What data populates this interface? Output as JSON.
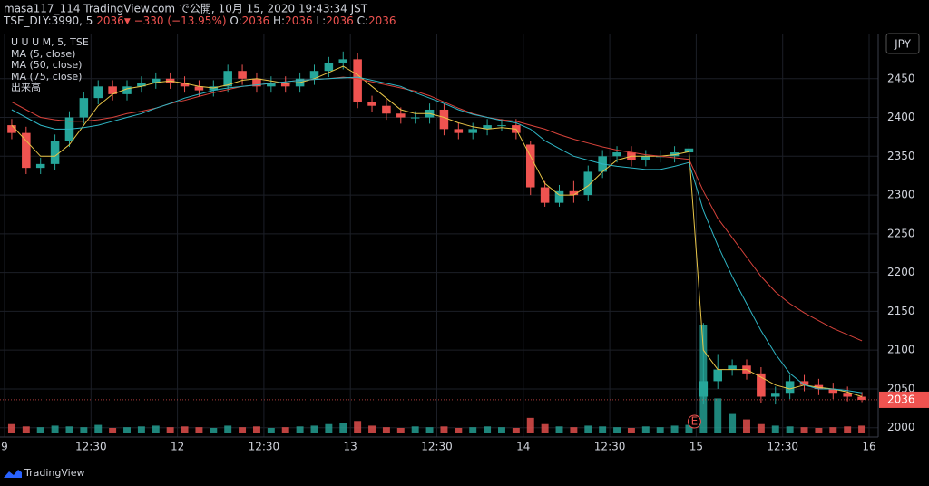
{
  "header": {
    "line1": "masa117_114 TradingView.com で公開, 10月 15, 2020 19:43:34 JST",
    "symbol": "TSE_DLY:3990, 5",
    "last": 2036,
    "direction": "▼",
    "change": "−330 (−13.95%)",
    "ohlc_labels": [
      "O:",
      "H:",
      "L:",
      "C:"
    ],
    "ohlc_values": [
      2036,
      2036,
      2036,
      2036
    ]
  },
  "legend": [
    "U U U M, 5, TSE",
    "MA (5, close)",
    "MA (50, close)",
    "MA (75, close)",
    "出来高"
  ],
  "currency_button": "JPY",
  "earnings_marker": "E",
  "footer": "TradingView",
  "chart_data": {
    "type": "candlestick",
    "up_color": "#26a69a",
    "down_color": "#ef5350",
    "grid": true,
    "xlim": [
      0,
      300
    ],
    "xticks": [
      {
        "value": 0,
        "label": "9"
      },
      {
        "value": 30,
        "label": "12:30"
      },
      {
        "value": 60,
        "label": "12"
      },
      {
        "value": 90,
        "label": "12:30"
      },
      {
        "value": 120,
        "label": "13"
      },
      {
        "value": 150,
        "label": "12:30"
      },
      {
        "value": 180,
        "label": "14"
      },
      {
        "value": 210,
        "label": "12:30"
      },
      {
        "value": 240,
        "label": "15"
      },
      {
        "value": 270,
        "label": "12:30"
      },
      {
        "value": 300,
        "label": "16"
      }
    ],
    "ylim": [
      1988,
      2507
    ],
    "yticks": [
      2000,
      2050,
      2100,
      2150,
      2200,
      2250,
      2300,
      2350,
      2400,
      2450
    ],
    "last_price": 2036,
    "x": [
      2.5,
      7.5,
      12.5,
      17.5,
      22.5,
      27.5,
      32.5,
      37.5,
      42.5,
      47.5,
      52.5,
      57.5,
      62.5,
      67.5,
      72.5,
      77.5,
      82.5,
      87.5,
      92.5,
      97.5,
      102.5,
      107.5,
      112.5,
      117.5,
      122.5,
      127.5,
      132.5,
      137.5,
      142.5,
      147.5,
      152.5,
      157.5,
      162.5,
      167.5,
      172.5,
      177.5,
      182.5,
      187.5,
      192.5,
      197.5,
      202.5,
      207.5,
      212.5,
      217.5,
      222.5,
      227.5,
      232.5,
      237.5,
      242.5,
      247.5,
      252.5,
      257.5,
      262.5,
      267.5,
      272.5,
      277.5,
      282.5,
      287.5,
      292.5,
      297.5
    ],
    "open": [
      2390,
      2380,
      2335,
      2340,
      2370,
      2400,
      2425,
      2440,
      2430,
      2440,
      2445,
      2450,
      2445,
      2440,
      2435,
      2440,
      2460,
      2450,
      2440,
      2445,
      2440,
      2450,
      2460,
      2470,
      2475,
      2420,
      2415,
      2405,
      2400,
      2400,
      2410,
      2385,
      2380,
      2385,
      2390,
      2390,
      2365,
      2310,
      2290,
      2305,
      2300,
      2330,
      2350,
      2355,
      2345,
      2350,
      2350,
      2355,
      2040,
      2060,
      2075,
      2080,
      2070,
      2040,
      2045,
      2060,
      2055,
      2050,
      2045,
      2040
    ],
    "high": [
      2398,
      2388,
      2348,
      2378,
      2408,
      2433,
      2448,
      2448,
      2448,
      2453,
      2458,
      2458,
      2453,
      2448,
      2448,
      2468,
      2468,
      2458,
      2453,
      2453,
      2458,
      2468,
      2478,
      2485,
      2483,
      2428,
      2423,
      2413,
      2408,
      2418,
      2418,
      2393,
      2393,
      2398,
      2398,
      2398,
      2370,
      2318,
      2313,
      2318,
      2338,
      2358,
      2363,
      2363,
      2358,
      2358,
      2363,
      2366,
      2135,
      2095,
      2088,
      2088,
      2078,
      2053,
      2068,
      2068,
      2063,
      2058,
      2053,
      2046
    ],
    "low": [
      2372,
      2327,
      2327,
      2332,
      2362,
      2392,
      2417,
      2422,
      2422,
      2432,
      2437,
      2437,
      2432,
      2427,
      2427,
      2432,
      2442,
      2432,
      2432,
      2432,
      2432,
      2442,
      2452,
      2462,
      2412,
      2407,
      2397,
      2392,
      2392,
      2392,
      2377,
      2372,
      2372,
      2377,
      2382,
      2372,
      2300,
      2285,
      2285,
      2290,
      2292,
      2322,
      2342,
      2337,
      2337,
      2342,
      2342,
      2347,
      2030,
      2050,
      2067,
      2062,
      2032,
      2030,
      2037,
      2047,
      2042,
      2037,
      2034,
      2033
    ],
    "close": [
      2380,
      2335,
      2340,
      2370,
      2400,
      2425,
      2440,
      2430,
      2440,
      2445,
      2450,
      2445,
      2440,
      2435,
      2440,
      2460,
      2450,
      2440,
      2445,
      2440,
      2450,
      2460,
      2470,
      2475,
      2420,
      2415,
      2405,
      2400,
      2400,
      2410,
      2385,
      2380,
      2385,
      2390,
      2390,
      2380,
      2310,
      2290,
      2305,
      2300,
      2330,
      2350,
      2355,
      2345,
      2350,
      2350,
      2355,
      2360,
      2060,
      2075,
      2080,
      2070,
      2040,
      2045,
      2060,
      2055,
      2050,
      2045,
      2040,
      2036
    ],
    "volume": [
      12,
      9,
      8,
      10,
      9,
      8,
      11,
      7,
      8,
      9,
      10,
      8,
      9,
      8,
      7,
      10,
      8,
      9,
      7,
      8,
      9,
      10,
      12,
      14,
      16,
      10,
      8,
      7,
      9,
      8,
      9,
      7,
      8,
      9,
      8,
      7,
      20,
      12,
      9,
      8,
      10,
      9,
      8,
      7,
      9,
      8,
      10,
      11,
      140,
      45,
      25,
      18,
      12,
      10,
      9,
      8,
      7,
      8,
      9,
      10
    ],
    "series": [
      {
        "name": "MA (5, close)",
        "color": "#e8c547",
        "values": [
          2390,
          2370,
          2350,
          2350,
          2365,
          2390,
          2415,
          2430,
          2437,
          2440,
          2445,
          2447,
          2444,
          2440,
          2438,
          2442,
          2448,
          2450,
          2447,
          2444,
          2445,
          2450,
          2458,
          2466,
          2455,
          2440,
          2425,
          2410,
          2405,
          2405,
          2400,
          2393,
          2388,
          2385,
          2387,
          2385,
          2350,
          2315,
          2300,
          2300,
          2312,
          2330,
          2345,
          2350,
          2350,
          2350,
          2352,
          2356,
          2100,
          2075,
          2075,
          2075,
          2065,
          2055,
          2050,
          2055,
          2052,
          2050,
          2046,
          2040
        ]
      },
      {
        "name": "MA (50, close)",
        "color": "#d8433b",
        "values": [
          2420,
          2410,
          2400,
          2397,
          2395,
          2395,
          2397,
          2400,
          2405,
          2408,
          2412,
          2418,
          2422,
          2427,
          2432,
          2436,
          2440,
          2442,
          2444,
          2446,
          2448,
          2449,
          2450,
          2452,
          2450,
          2446,
          2442,
          2438,
          2434,
          2428,
          2420,
          2412,
          2405,
          2400,
          2397,
          2395,
          2390,
          2385,
          2378,
          2372,
          2367,
          2362,
          2358,
          2355,
          2352,
          2350,
          2348,
          2346,
          2305,
          2270,
          2245,
          2220,
          2195,
          2175,
          2160,
          2148,
          2138,
          2128,
          2120,
          2112
        ]
      },
      {
        "name": "MA (75, close)",
        "color": "#2fb6c5",
        "values": [
          2410,
          2400,
          2390,
          2385,
          2385,
          2387,
          2390,
          2395,
          2400,
          2405,
          2412,
          2418,
          2425,
          2430,
          2435,
          2438,
          2440,
          2442,
          2444,
          2446,
          2448,
          2449,
          2450,
          2451,
          2452,
          2448,
          2444,
          2440,
          2432,
          2425,
          2418,
          2410,
          2404,
          2400,
          2396,
          2393,
          2385,
          2370,
          2360,
          2350,
          2345,
          2340,
          2337,
          2335,
          2333,
          2333,
          2337,
          2342,
          2280,
          2235,
          2195,
          2160,
          2125,
          2095,
          2070,
          2055,
          2050,
          2050,
          2048,
          2045
        ]
      }
    ]
  }
}
